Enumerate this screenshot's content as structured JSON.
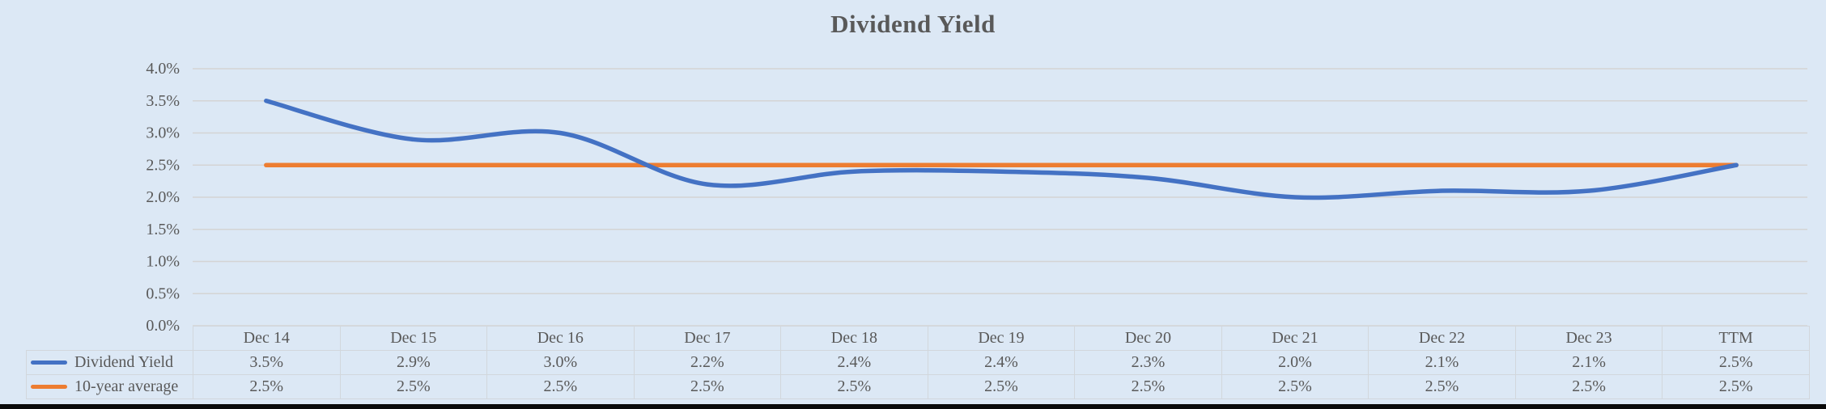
{
  "colors": {
    "background": "#dce8f5",
    "grid": "#d4d4d4",
    "table_border": "#d2d7dc",
    "text": "#595959",
    "series_blue": "#4472C4",
    "series_orange": "#ED7D31",
    "bottom_bar": "#0a0a0a"
  },
  "chart_data": {
    "type": "line",
    "title": "Dividend Yield",
    "categories": [
      "Dec 14",
      "Dec 15",
      "Dec 16",
      "Dec 17",
      "Dec 18",
      "Dec 19",
      "Dec 20",
      "Dec 21",
      "Dec 22",
      "Dec 23",
      "TTM"
    ],
    "series": [
      {
        "name": "Dividend Yield",
        "color": "#4472C4",
        "smooth": true,
        "values_pct": [
          3.5,
          2.9,
          3.0,
          2.2,
          2.4,
          2.4,
          2.3,
          2.0,
          2.1,
          2.1,
          2.5
        ],
        "labels": [
          "3.5%",
          "2.9%",
          "3.0%",
          "2.2%",
          "2.4%",
          "2.4%",
          "2.3%",
          "2.0%",
          "2.1%",
          "2.1%",
          "2.5%"
        ]
      },
      {
        "name": "10-year average",
        "color": "#ED7D31",
        "smooth": false,
        "values_pct": [
          2.5,
          2.5,
          2.5,
          2.5,
          2.5,
          2.5,
          2.5,
          2.5,
          2.5,
          2.5,
          2.5
        ],
        "labels": [
          "2.5%",
          "2.5%",
          "2.5%",
          "2.5%",
          "2.5%",
          "2.5%",
          "2.5%",
          "2.5%",
          "2.5%",
          "2.5%",
          "2.5%"
        ]
      }
    ],
    "y_axis": {
      "min": 0,
      "max": 4,
      "step": 0.5,
      "tick_labels": [
        "0.0%",
        "0.5%",
        "1.0%",
        "1.5%",
        "2.0%",
        "2.5%",
        "3.0%",
        "3.5%",
        "4.0%"
      ]
    },
    "grid": true,
    "legend_position": "table-left"
  }
}
